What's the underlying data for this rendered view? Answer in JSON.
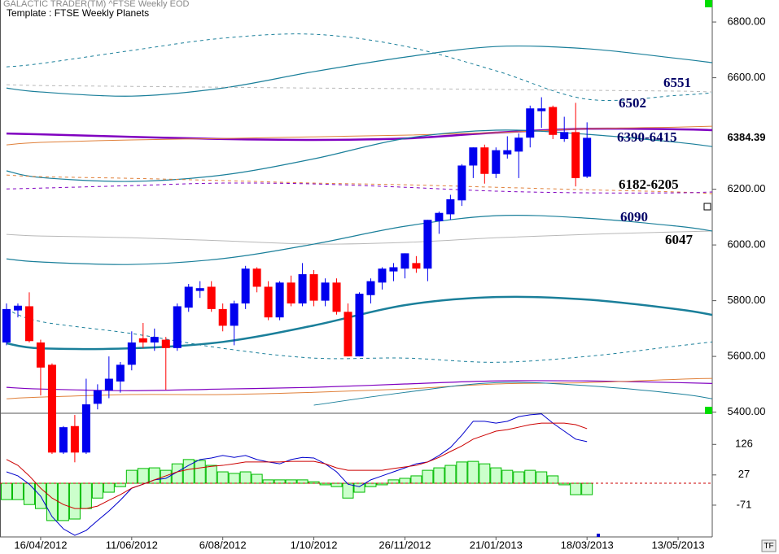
{
  "chart_data": [
    {
      "type": "candlestick",
      "title": "GALACTIC TRADER(TM)   ^FTSE Weekly EOD",
      "subtitle": "Template : FTSE Weekly Planets",
      "x": [
        "26/03/2012",
        "2/04/2012",
        "9/04/2012",
        "16/04/2012",
        "23/04/2012",
        "30/04/2012",
        "7/05/2012",
        "14/05/2012",
        "21/05/2012",
        "28/05/2012",
        "4/06/2012",
        "11/06/2012",
        "18/06/2012",
        "25/06/2012",
        "2/07/2012",
        "9/07/2012",
        "16/07/2012",
        "23/07/2012",
        "30/07/2012",
        "6/08/2012",
        "13/08/2012",
        "20/08/2012",
        "27/08/2012",
        "3/09/2012",
        "10/09/2012",
        "17/09/2012",
        "24/09/2012",
        "1/10/2012",
        "8/10/2012",
        "15/10/2012",
        "22/10/2012",
        "29/10/2012",
        "5/11/2012",
        "12/11/2012",
        "19/11/2012",
        "26/11/2012",
        "3/12/2012",
        "10/12/2012",
        "17/12/2012",
        "24/12/2012",
        "31/12/2012",
        "7/01/2013",
        "14/01/2013",
        "21/01/2013",
        "28/01/2013",
        "4/02/2013",
        "11/02/2013",
        "18/02/2013",
        "25/02/2013",
        "4/03/2013",
        "11/03/2013",
        "18/03/2013"
      ],
      "open": [
        5650,
        5765,
        5780,
        5650,
        5570,
        5255,
        5350,
        5255,
        5430,
        5478,
        5510,
        5570,
        5665,
        5650,
        5660,
        5630,
        5775,
        5835,
        5850,
        5770,
        5710,
        5790,
        5915,
        5850,
        5740,
        5865,
        5790,
        5895,
        5800,
        5865,
        5760,
        5600,
        5820,
        5865,
        5905,
        5915,
        5935,
        5915,
        6085,
        6110,
        6160,
        6285,
        6350,
        6255,
        6325,
        6335,
        6385,
        6480,
        6495,
        6380,
        6405,
        6245
      ],
      "high": [
        5790,
        5790,
        5830,
        5660,
        5575,
        5350,
        5390,
        5520,
        5500,
        5600,
        5580,
        5690,
        5720,
        5700,
        5670,
        5790,
        5860,
        5870,
        5870,
        5790,
        5800,
        5925,
        5920,
        5870,
        5870,
        5890,
        5935,
        5910,
        5880,
        5880,
        5790,
        5830,
        5880,
        5920,
        5935,
        5970,
        5960,
        6090,
        6120,
        6180,
        6290,
        6350,
        6360,
        6350,
        6390,
        6400,
        6500,
        6530,
        6500,
        6460,
        6510,
        6440
      ],
      "low": [
        5640,
        5740,
        5650,
        5460,
        5250,
        5250,
        5220,
        5250,
        5410,
        5450,
        5470,
        5550,
        5630,
        5620,
        5480,
        5620,
        5760,
        5810,
        5760,
        5690,
        5640,
        5770,
        5830,
        5730,
        5730,
        5780,
        5780,
        5780,
        5780,
        5750,
        5600,
        5600,
        5790,
        5840,
        5870,
        5880,
        5900,
        5870,
        6040,
        6090,
        6140,
        6240,
        6220,
        6240,
        6310,
        6240,
        6350,
        6420,
        6380,
        6370,
        6210,
        6240
      ],
      "close": [
        5770,
        5782,
        5655,
        5560,
        5255,
        5346,
        5255,
        5428,
        5478,
        5520,
        5570,
        5650,
        5650,
        5670,
        5630,
        5780,
        5850,
        5845,
        5770,
        5710,
        5790,
        5915,
        5850,
        5740,
        5865,
        5790,
        5895,
        5800,
        5865,
        5760,
        5600,
        5825,
        5870,
        5915,
        5920,
        5970,
        5915,
        6090,
        6115,
        6164,
        6285,
        6350,
        6255,
        6340,
        6340,
        6385,
        6490,
        6490,
        6395,
        6405,
        6240,
        6384.39
      ],
      "up_color": "#0000ee",
      "down_color": "#ff0000",
      "last_price": 6384.39,
      "xlim": [
        "22/03/2012",
        "03/06/2013"
      ],
      "xticks": [
        "16/04/2012",
        "11/06/2012",
        "6/08/2012",
        "1/10/2012",
        "26/11/2012",
        "21/01/2013",
        "18/03/2013",
        "13/05/2013"
      ],
      "ylim": [
        5396,
        6879
      ],
      "yticks": [
        {
          "value": 5400,
          "label": "5400.00"
        },
        {
          "value": 5600,
          "label": "5600.00"
        },
        {
          "value": 5800,
          "label": "5800.00"
        },
        {
          "value": 6000,
          "label": "6000.00"
        },
        {
          "value": 6200,
          "label": "6200.00"
        },
        {
          "value": 6600,
          "label": "6600.00"
        },
        {
          "value": 6800,
          "label": "6800.00"
        }
      ],
      "overlay_x": [
        "26/03/2012",
        "16/04/2012",
        "11/06/2012",
        "6/08/2012",
        "1/10/2012",
        "26/11/2012",
        "21/01/2013",
        "18/03/2013",
        "13/05/2013",
        "03/06/2013"
      ],
      "overlays": [
        {
          "color": "#1a7f9a",
          "dash": false,
          "width": 1.2,
          "values": [
            6563,
            6549,
            6534,
            6563,
            6622,
            6674,
            6712,
            6704,
            6669,
            6654
          ]
        },
        {
          "color": "#1a7f9a",
          "dash": true,
          "width": 1,
          "values": [
            6639,
            6651,
            6698,
            6742,
            6756,
            6713,
            6625,
            6523,
            6537,
            6546
          ]
        },
        {
          "color": "#b8b8b8",
          "dash": true,
          "width": 1,
          "values": [
            6575,
            6572,
            6569,
            6566,
            6563,
            6561,
            6558,
            6555,
            6552,
            6549
          ]
        },
        {
          "color": "#8000c0",
          "dash": false,
          "width": 2.5,
          "values": [
            6400,
            6397,
            6388,
            6380,
            6377,
            6382,
            6403,
            6417,
            6415,
            6412
          ]
        },
        {
          "color": "#e0803a",
          "dash": false,
          "width": 1,
          "values": [
            6359,
            6368,
            6377,
            6382,
            6388,
            6394,
            6403,
            6417,
            6423,
            6426
          ]
        },
        {
          "color": "#1a7f9a",
          "dash": false,
          "width": 1.2,
          "values": [
            6266,
            6242,
            6228,
            6251,
            6309,
            6382,
            6412,
            6397,
            6368,
            6353
          ]
        },
        {
          "color": "#e0803a",
          "dash": true,
          "width": 1,
          "values": [
            6251,
            6245,
            6239,
            6231,
            6222,
            6216,
            6207,
            6198,
            6190,
            6184
          ]
        },
        {
          "color": "#8000c0",
          "dash": true,
          "width": 1,
          "values": [
            6201,
            6204,
            6213,
            6222,
            6219,
            6207,
            6193,
            6187,
            6187,
            6190
          ]
        },
        {
          "color": "#b8b8b8",
          "dash": false,
          "width": 1,
          "values": [
            6038,
            6032,
            6026,
            6015,
            6003,
            6009,
            6026,
            6038,
            6047,
            6050
          ]
        },
        {
          "color": "#1a7f9a",
          "dash": false,
          "width": 1.2,
          "values": [
            5950,
            5939,
            5930,
            5951,
            6003,
            6067,
            6105,
            6096,
            6067,
            6050
          ]
        },
        {
          "color": "#1a7f9a",
          "dash": false,
          "width": 2.5,
          "values": [
            5647,
            5629,
            5629,
            5652,
            5711,
            5784,
            5813,
            5804,
            5769,
            5749
          ]
        },
        {
          "color": "#1a7f9a",
          "dash": true,
          "width": 1,
          "values": [
            5769,
            5725,
            5682,
            5629,
            5594,
            5594,
            5579,
            5600,
            5638,
            5652
          ]
        },
        {
          "color": "#8000c0",
          "dash": false,
          "width": 1.2,
          "values": [
            5489,
            5483,
            5477,
            5483,
            5489,
            5501,
            5512,
            5512,
            5506,
            5503
          ]
        },
        {
          "color": "#e0803a",
          "dash": false,
          "width": 1,
          "values": [
            5448,
            5454,
            5463,
            5463,
            5471,
            5483,
            5501,
            5506,
            5518,
            5521
          ]
        },
        {
          "color": "#1a7f9a",
          "dash": false,
          "width": 1,
          "values": [
            null,
            null,
            null,
            null,
            5425,
            5471,
            5506,
            5495,
            5466,
            5448
          ]
        }
      ],
      "annotations": [
        {
          "text": "6551",
          "color": "#000066"
        },
        {
          "text": "6502",
          "color": "#000066"
        },
        {
          "text": "6390-6415",
          "color": "#000066"
        },
        {
          "text": "6182-6205",
          "color": "#000000"
        },
        {
          "text": "6090",
          "color": "#000066"
        },
        {
          "text": "6047",
          "color": "#000000"
        }
      ],
      "corner_label": "TF"
    },
    {
      "type": "macd",
      "ylim": [
        -174,
        227
      ],
      "yticks": [
        -71,
        27,
        126
      ],
      "series": [
        {
          "kind": "histogram",
          "color": "#00bb00",
          "fill": "#ccffcc",
          "values": [
            -53,
            -53,
            -69,
            -82,
            -121,
            -121,
            -116,
            -82,
            -48,
            -29,
            -11,
            42,
            48,
            50,
            42,
            63,
            77,
            74,
            58,
            37,
            32,
            37,
            29,
            11,
            11,
            11,
            11,
            5,
            -5,
            -11,
            -48,
            -29,
            -11,
            -5,
            11,
            16,
            24,
            42,
            50,
            58,
            69,
            71,
            63,
            50,
            42,
            37,
            42,
            37,
            24,
            -5,
            -37,
            -37
          ]
        },
        {
          "kind": "line",
          "color": "#0000cc",
          "values": [
            37,
            24,
            -3,
            -42,
            -108,
            -148,
            -169,
            -153,
            -121,
            -90,
            -55,
            -16,
            -3,
            11,
            16,
            37,
            58,
            77,
            82,
            90,
            84,
            90,
            77,
            69,
            63,
            77,
            84,
            82,
            63,
            37,
            -3,
            -11,
            11,
            24,
            37,
            50,
            63,
            69,
            90,
            116,
            156,
            201,
            201,
            195,
            201,
            216,
            222,
            225,
            195,
            169,
            143,
            135
          ]
        },
        {
          "kind": "line",
          "color": "#cc0000",
          "values": [
            77,
            58,
            24,
            -16,
            -48,
            -69,
            -82,
            -82,
            -74,
            -55,
            -37,
            -16,
            -3,
            11,
            24,
            37,
            45,
            50,
            55,
            58,
            63,
            69,
            69,
            69,
            69,
            71,
            71,
            71,
            63,
            50,
            42,
            42,
            42,
            42,
            48,
            53,
            58,
            69,
            84,
            103,
            121,
            143,
            156,
            169,
            174,
            182,
            190,
            195,
            195,
            195,
            190,
            177
          ]
        }
      ]
    }
  ]
}
